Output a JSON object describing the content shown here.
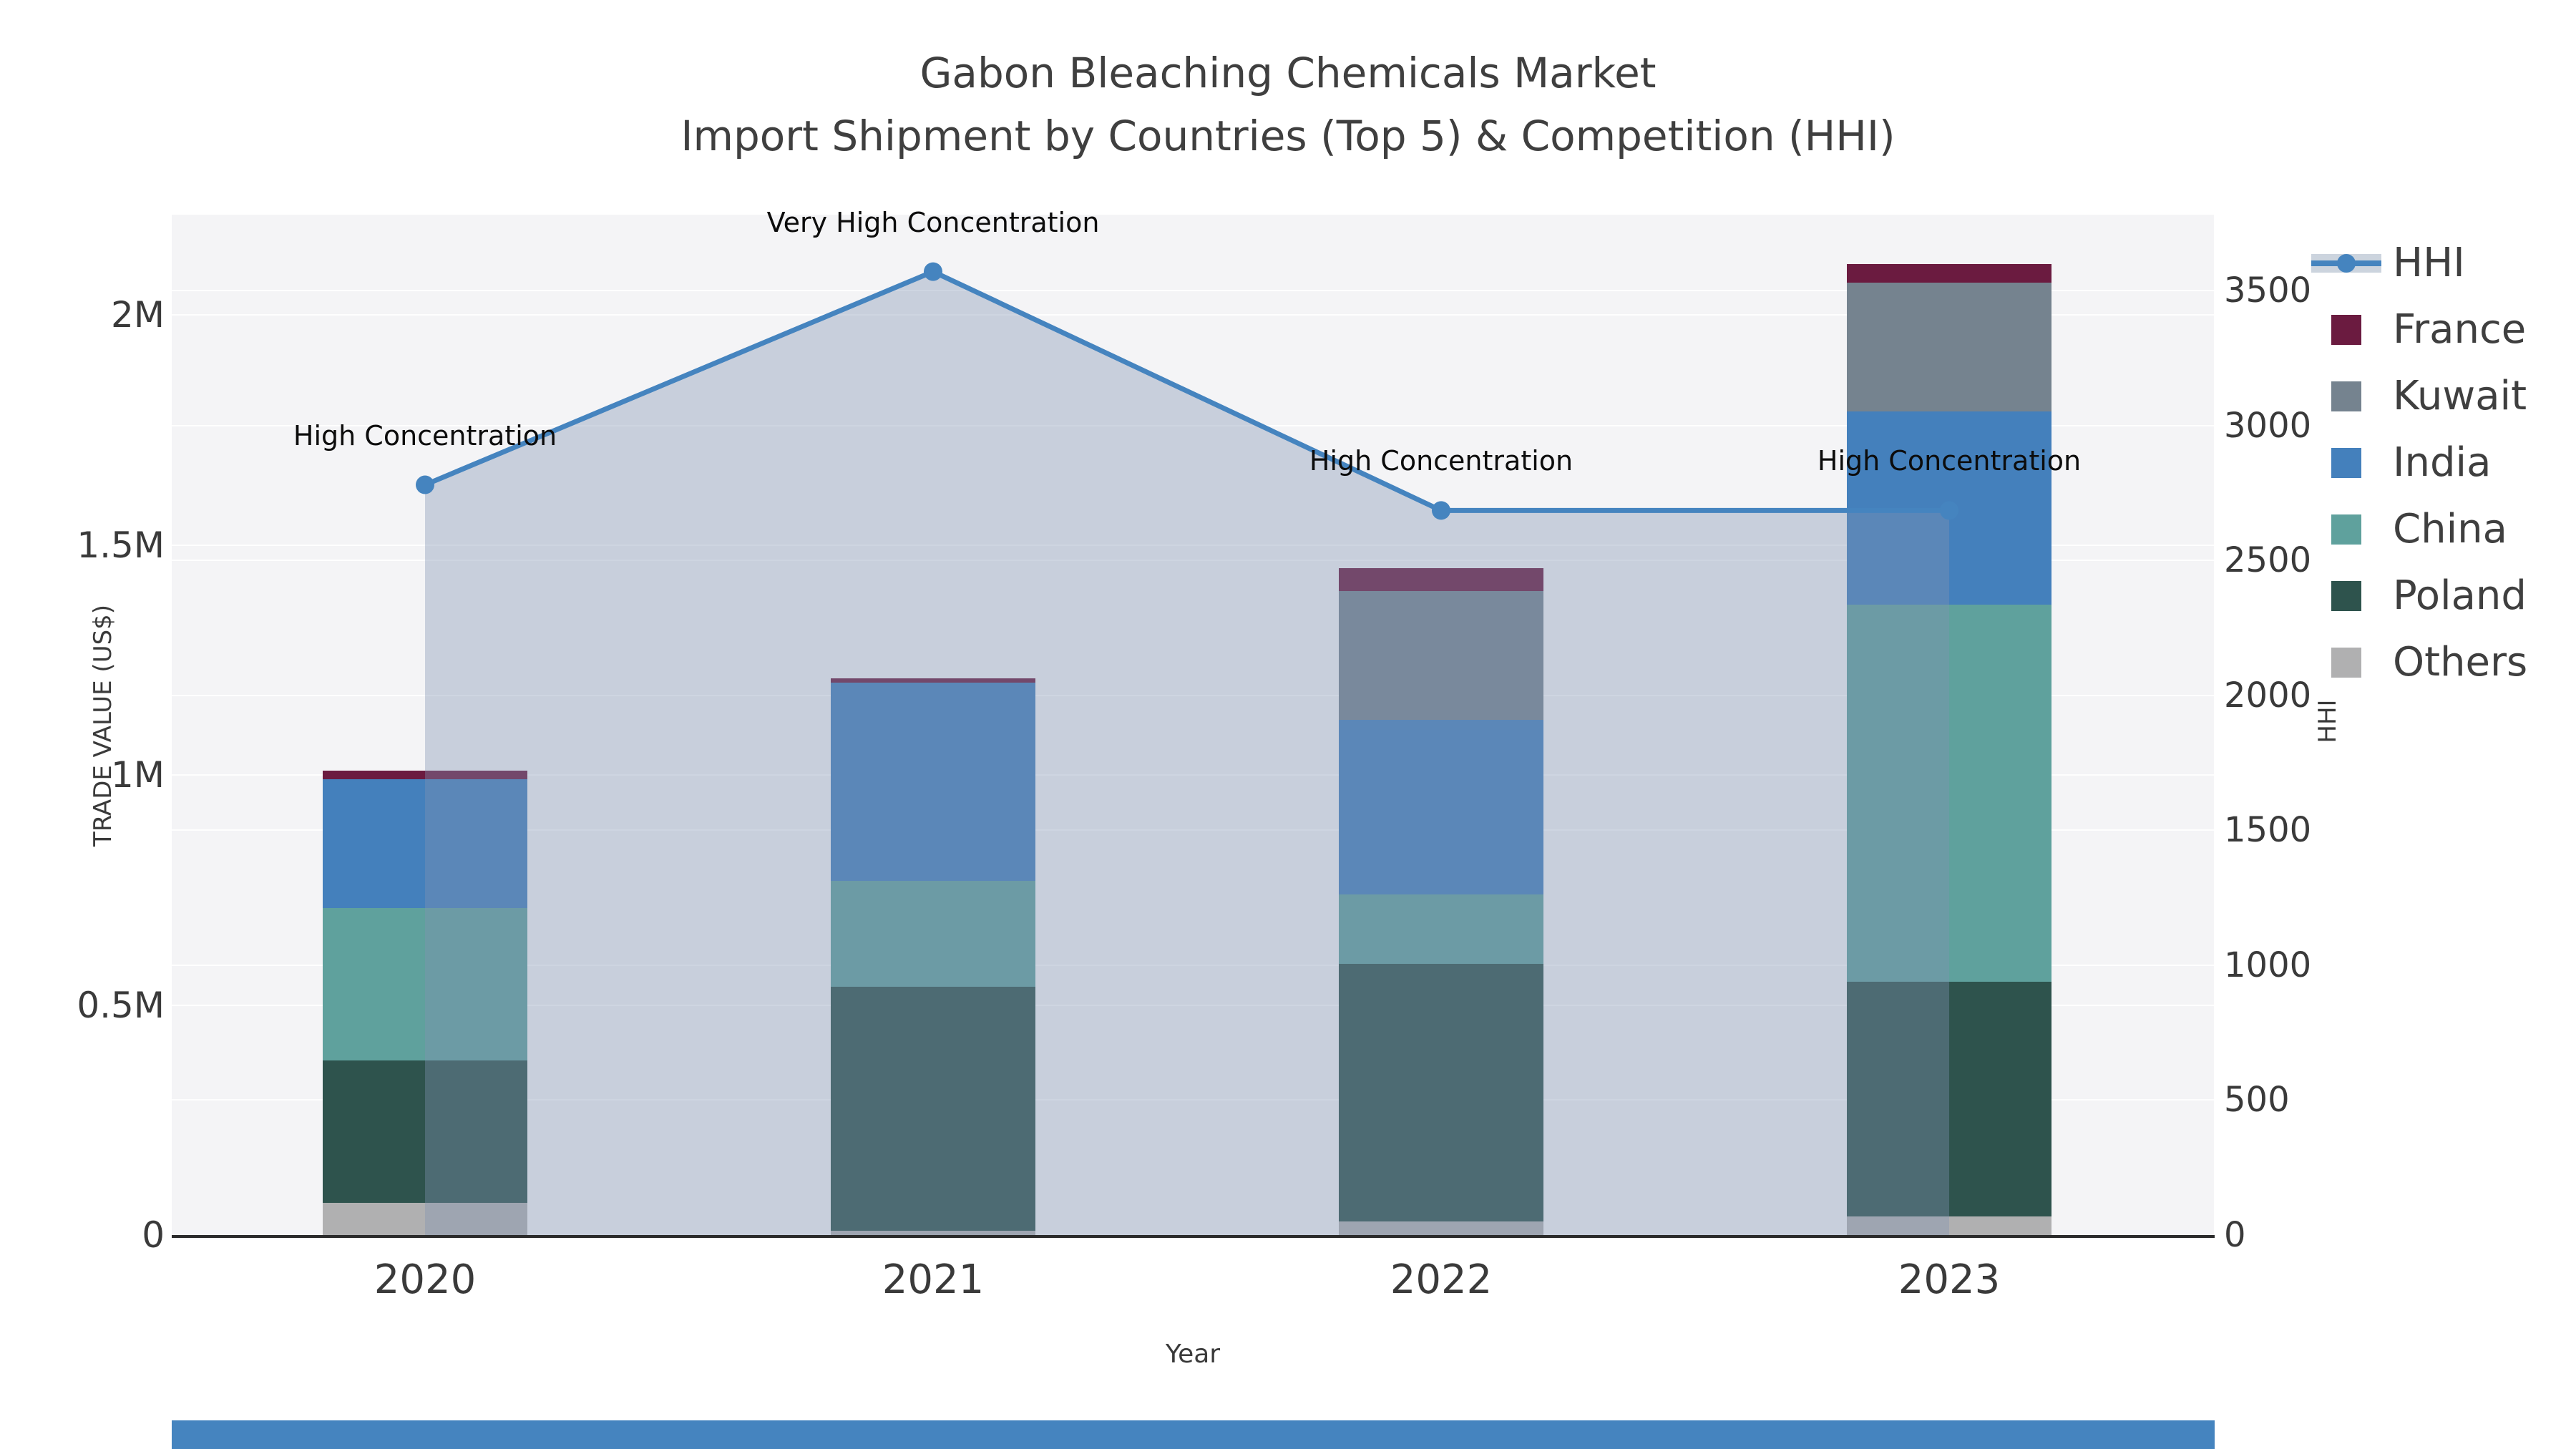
{
  "figure": {
    "title_line1": "Gabon Bleaching Chemicals Market",
    "title_line2": "Import Shipment by Countries (Top 5) & Competition (HHI)"
  },
  "chart_data": {
    "type": "combo: stacked bar (trade value) + line with area fill (HHI)",
    "categories": [
      "2020",
      "2021",
      "2022",
      "2023"
    ],
    "bar_unit": "million US$",
    "bar_series_bottom_to_top": [
      {
        "name": "Others",
        "color": "#b0b0b1",
        "values": [
          0.07,
          0.01,
          0.03,
          0.04
        ]
      },
      {
        "name": "Poland",
        "color": "#2e534d",
        "values": [
          0.31,
          0.53,
          0.56,
          0.51
        ]
      },
      {
        "name": "China",
        "color": "#5fa19d",
        "values": [
          0.33,
          0.23,
          0.15,
          0.82
        ]
      },
      {
        "name": "India",
        "color": "#4480bc",
        "values": [
          0.28,
          0.43,
          0.38,
          0.42
        ]
      },
      {
        "name": "Kuwait",
        "color": "#75838f",
        "values": [
          0.0,
          0.0,
          0.28,
          0.28
        ]
      },
      {
        "name": "France",
        "color": "#6b1b40",
        "values": [
          0.02,
          0.01,
          0.05,
          0.04
        ]
      }
    ],
    "bar_totals_million_usd": [
      1.01,
      1.21,
      1.45,
      2.11
    ],
    "line_series": {
      "name": "HHI",
      "color": "#4584bf",
      "area_fill": "rgba(128,148,179,0.38)",
      "values": [
        2780,
        3570,
        2685,
        2685
      ]
    },
    "annotations": [
      {
        "year": "2020",
        "text": "High Concentration"
      },
      {
        "year": "2021",
        "text": "Very High Concentration"
      },
      {
        "year": "2022",
        "text": "High Concentration"
      },
      {
        "year": "2023",
        "text": "High Concentration"
      }
    ],
    "left_axis": {
      "label": "TRADE VALUE (US$)",
      "ticks": [
        "0",
        "0.5M",
        "1M",
        "1.5M",
        "2M"
      ],
      "tick_values": [
        0,
        0.5,
        1,
        1.5,
        2
      ],
      "max": 2.218
    },
    "right_axis": {
      "label": "HHI",
      "ticks": [
        "0",
        "500",
        "1000",
        "1500",
        "2000",
        "2500",
        "3000",
        "3500"
      ],
      "tick_values": [
        0,
        500,
        1000,
        1500,
        2000,
        2500,
        3000,
        3500
      ],
      "max": 3781
    },
    "x_axis": {
      "label": "Year"
    },
    "legend_order": [
      "HHI",
      "France",
      "Kuwait",
      "India",
      "China",
      "Poland",
      "Others"
    ],
    "legend_position": "right",
    "grid": true,
    "plot_background": "#f4f4f6"
  }
}
